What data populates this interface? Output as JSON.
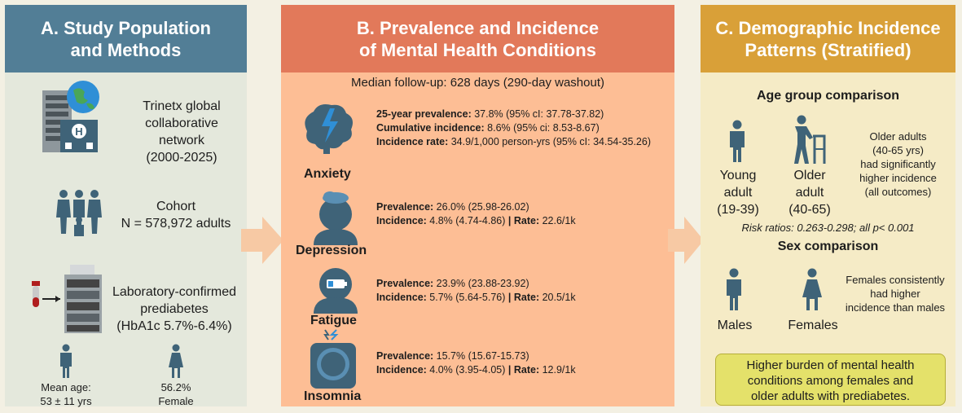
{
  "panel_a": {
    "title_line1": "A. Study Population",
    "title_line2": "and Methods",
    "network_line1": "Trinetx global",
    "network_line2": "collaborative network",
    "network_line3": "(2000-2025)",
    "cohort_line1": "Cohort",
    "cohort_line2": "N = 578,972 adults",
    "lab_line1": "Laboratory-confirmed",
    "lab_line2": "prediabetes",
    "lab_line3": "(HbA1c 5.7%-6.4%)",
    "age_line1": "Mean age:",
    "age_line2": "53 ± 11 yrs",
    "female_line1": "56.2%",
    "female_line2": "Female"
  },
  "panel_b": {
    "title_line1": "B. Prevalence and Incidence",
    "title_line2": "of Mental Health Conditions",
    "followup": "Median follow-up: 628 days (290-day washout)",
    "conditions": [
      {
        "name": "Anxiety",
        "lines": [
          {
            "label": "25-year prevalence:",
            "value": " 37.8% (95% cI: 37.78-37.82)"
          },
          {
            "label": "Cumulative incidence:",
            "value": " 8.6% (95% ci: 8.53-8.67)"
          },
          {
            "label": "Incidence rate:",
            "value": " 34.9/1,000 person-yrs (95% cI: 34.54-35.26)"
          }
        ]
      },
      {
        "name": "Depression",
        "lines": [
          {
            "label": "Prevalence:",
            "value": " 26.0% (25.98-26.02)"
          },
          {
            "label": "Incidence:",
            "value": " 4.8% (4.74-4.86) ",
            "label2": "| Rate:",
            "value2": " 22.6/1k"
          }
        ]
      },
      {
        "name": "Fatigue",
        "lines": [
          {
            "label": "Prevalence:",
            "value": " 23.9% (23.88-23.92)"
          },
          {
            "label": "Incidence:",
            "value": " 5.7% (5.64-5.76) ",
            "label2": "| Rate:",
            "value2": " 20.5/1k"
          }
        ]
      },
      {
        "name": "Insomnia",
        "lines": [
          {
            "label": "Prevalence:",
            "value": " 15.7% (15.67-15.73)"
          },
          {
            "label": "Incidence:",
            "value": " 4.0% (3.95-4.05) ",
            "label2": "| Rate:",
            "value2": " 12.9/1k"
          }
        ]
      }
    ]
  },
  "panel_c": {
    "title_line1": "C. Demographic Incidence",
    "title_line2": "Patterns (Stratified)",
    "age_heading": "Age group comparison",
    "young_line1": "Young",
    "young_line2": "adult",
    "young_line3": "(19-39)",
    "older_line1": "Older",
    "older_line2": "adult",
    "older_line3": "(40-65)",
    "older_note_line1": "Older adults",
    "older_note_line2": "(40-65 yrs)",
    "older_note_line3": "had significantly",
    "older_note_line4": "higher incidence",
    "older_note_line5": "(all outcomes)",
    "risk_ratios": "Risk ratios: 0.263-0.298; all p< 0.001",
    "sex_heading": "Sex comparison",
    "males": "Males",
    "females": "Females",
    "female_note_line1": "Females consistently",
    "female_note_line2": "had higher",
    "female_note_line3": "incidence than males",
    "conclusion_line1": "Higher burden of mental health",
    "conclusion_line2": "conditions among females and",
    "conclusion_line3": "older adults with prediabetes."
  },
  "colors": {
    "panel_a_header": "#527e96",
    "panel_b_header": "#e2795a",
    "panel_c_header": "#d9a038",
    "icon_slate": "#3f6378",
    "accent_blue": "#2f8fd6"
  }
}
